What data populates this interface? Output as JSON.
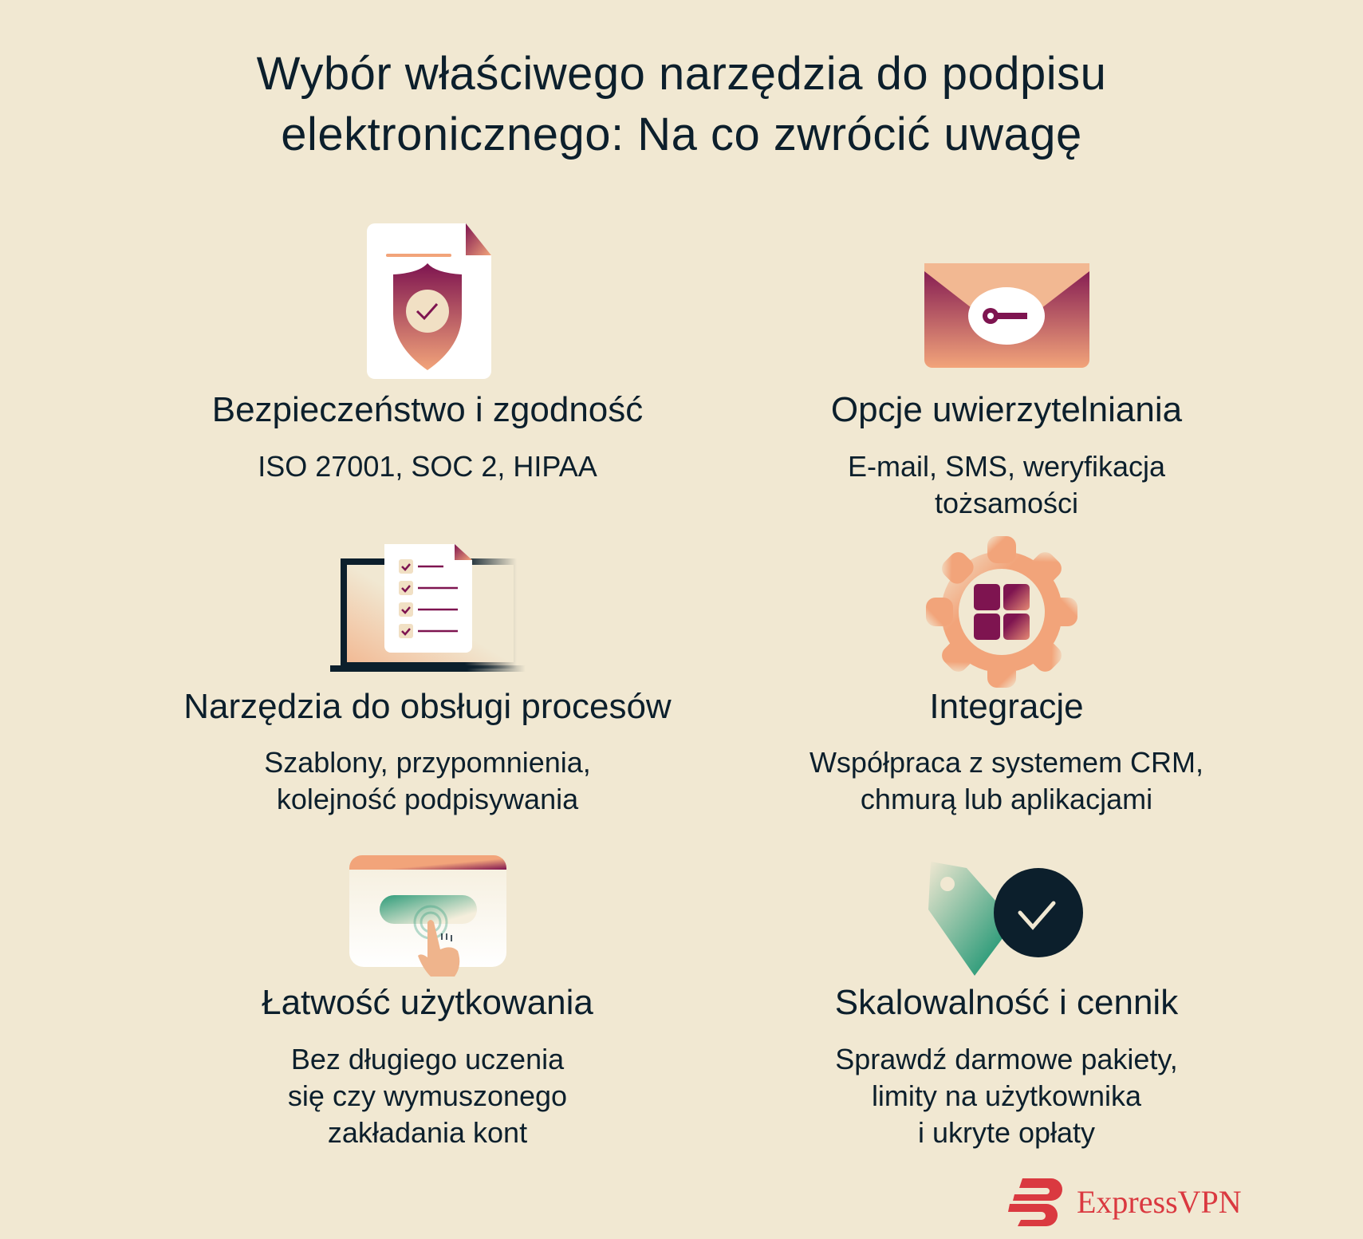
{
  "title": {
    "line1": "Wybór właściwego narzędzia do podpisu",
    "line2": "elektronicznego: Na co zwrócić uwagę"
  },
  "colors": {
    "background": "#f1e8d2",
    "text": "#0c1f2c",
    "plum": "#7e1450",
    "peach": "#f2a47a",
    "green": "#2e9c7a",
    "brand": "#da3940"
  },
  "items": [
    {
      "icon": "shield-document-icon",
      "heading": "Bezpieczeństwo i zgodność",
      "lines": [
        "ISO 27001, SOC 2, HIPAA"
      ]
    },
    {
      "icon": "envelope-key-icon",
      "heading": "Opcje uwierzytelniania",
      "lines": [
        "E-mail, SMS, weryfikacja",
        "tożsamości"
      ]
    },
    {
      "icon": "laptop-checklist-icon",
      "heading": "Narzędzia do obsługi procesów",
      "lines": [
        "Szablony, przypomnienia,",
        "kolejność podpisywania"
      ]
    },
    {
      "icon": "gear-apps-icon",
      "heading": "Integracje",
      "lines": [
        "Współpraca z systemem CRM,",
        "chmurą lub aplikacjami"
      ]
    },
    {
      "icon": "tap-button-icon",
      "heading": "Łatwość użytkowania",
      "lines": [
        "Bez długiego uczenia",
        "się czy wymuszonego",
        "zakładania kont"
      ]
    },
    {
      "icon": "price-tag-check-icon",
      "heading": "Skalowalność i cennik",
      "lines": [
        "Sprawdź darmowe pakiety,",
        "limity na użytkownika",
        "i ukryte opłaty"
      ]
    }
  ],
  "logo": {
    "text": "ExpressVPN"
  }
}
